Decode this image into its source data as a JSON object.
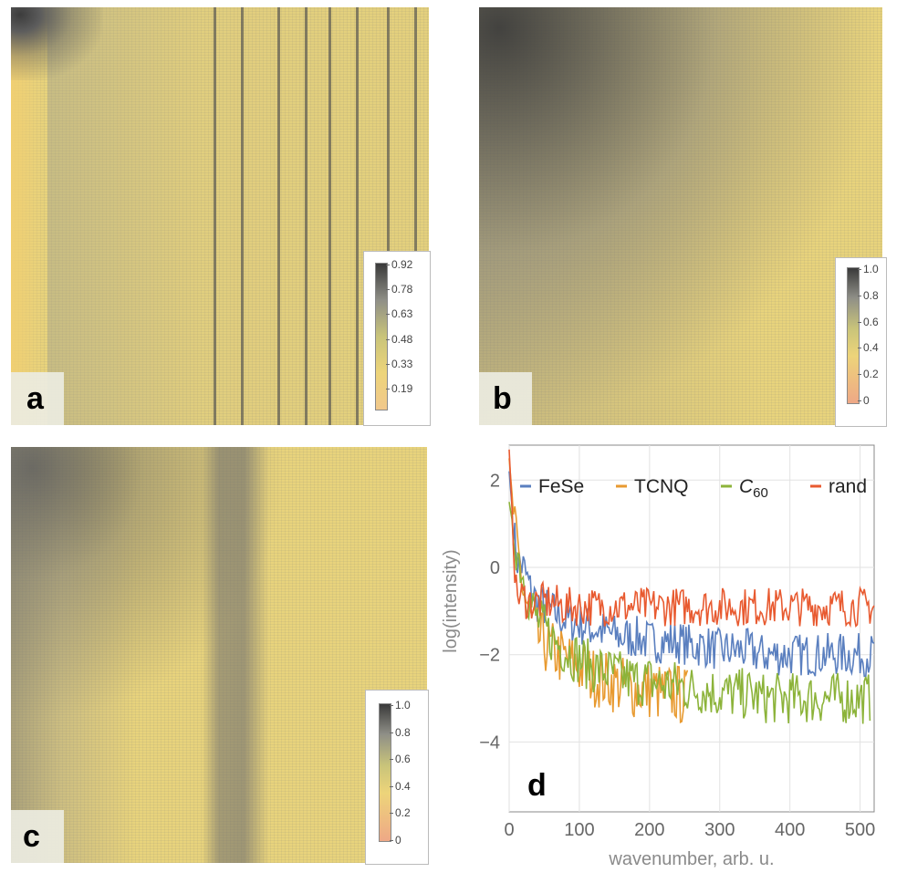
{
  "panels": {
    "a": {
      "letter": "a",
      "colorbar": [
        "0.92",
        "0.78",
        "0.63",
        "0.48",
        "0.33",
        "0.19"
      ]
    },
    "b": {
      "letter": "b",
      "colorbar": [
        "1.0",
        "0.8",
        "0.6",
        "0.4",
        "0.2",
        "0"
      ]
    },
    "c": {
      "letter": "c",
      "colorbar": [
        "1.0",
        "0.8",
        "0.6",
        "0.4",
        "0.2",
        "0"
      ]
    },
    "d": {
      "letter": "d"
    }
  },
  "chart_data": {
    "type": "line",
    "xlabel": "wavenumber, arb. u.",
    "ylabel": "log(intensity)",
    "xlim": [
      0,
      520
    ],
    "ylim": [
      -5.6,
      2.8
    ],
    "xticks": [
      0,
      100,
      200,
      300,
      400,
      500
    ],
    "yticks": [
      2,
      0,
      -2,
      -4
    ],
    "grid": true,
    "legend_position": "top",
    "series": [
      {
        "name": "FeSe",
        "color": "#5a7fbf",
        "x": [
          0,
          10,
          20,
          30,
          40,
          60,
          80,
          100,
          120,
          140,
          160,
          180,
          200,
          220,
          240,
          260,
          280,
          300,
          320,
          340,
          360,
          380,
          400,
          420,
          440,
          460,
          480,
          500,
          520
        ],
        "y": [
          2.2,
          0.2,
          0.0,
          -0.5,
          -0.8,
          -1.0,
          -1.2,
          -1.3,
          -1.4,
          -1.5,
          -1.6,
          -1.6,
          -1.7,
          -1.7,
          -1.7,
          -1.8,
          -1.8,
          -1.9,
          -1.9,
          -1.9,
          -2.0,
          -2.0,
          -2.0,
          -2.0,
          -2.0,
          -2.0,
          -2.0,
          -2.0,
          -2.0
        ]
      },
      {
        "name": "TCNQ",
        "color": "#e89a30",
        "x": [
          0,
          10,
          20,
          30,
          40,
          60,
          80,
          100,
          120,
          140,
          160,
          180,
          200,
          220,
          240,
          255
        ],
        "y": [
          2.5,
          0.5,
          -0.5,
          -1.2,
          -1.6,
          -1.9,
          -2.1,
          -2.3,
          -2.5,
          -2.6,
          -2.7,
          -2.8,
          -2.8,
          -2.9,
          -2.9,
          -3.0
        ]
      },
      {
        "name": "C60",
        "color": "#8cb33a",
        "x": [
          0,
          10,
          20,
          30,
          40,
          60,
          80,
          100,
          120,
          140,
          160,
          180,
          200,
          220,
          240,
          260,
          280,
          300,
          320,
          340,
          360,
          380,
          400,
          420,
          440,
          460,
          480,
          500,
          515
        ],
        "y": [
          1.5,
          0.5,
          -0.2,
          -0.8,
          -1.2,
          -1.6,
          -1.9,
          -2.1,
          -2.3,
          -2.4,
          -2.5,
          -2.6,
          -2.6,
          -2.7,
          -2.7,
          -2.8,
          -2.8,
          -2.9,
          -2.9,
          -2.9,
          -3.0,
          -3.0,
          -3.0,
          -3.0,
          -3.0,
          -3.0,
          -3.0,
          -3.0,
          -3.0
        ]
      },
      {
        "name": "rand",
        "color": "#e85a30",
        "x": [
          0,
          10,
          20,
          30,
          40,
          60,
          80,
          100,
          120,
          140,
          160,
          180,
          200,
          220,
          240,
          260,
          280,
          300,
          320,
          340,
          360,
          380,
          400,
          420,
          440,
          460,
          480,
          500,
          520
        ],
        "y": [
          2.7,
          -0.6,
          -0.7,
          -0.8,
          -0.8,
          -0.8,
          -0.9,
          -0.9,
          -0.9,
          -0.9,
          -0.9,
          -0.9,
          -0.9,
          -0.9,
          -0.9,
          -0.9,
          -0.9,
          -0.9,
          -0.9,
          -0.9,
          -0.9,
          -0.9,
          -0.9,
          -0.9,
          -0.9,
          -0.9,
          -0.9,
          -0.9,
          -0.9
        ]
      }
    ]
  }
}
